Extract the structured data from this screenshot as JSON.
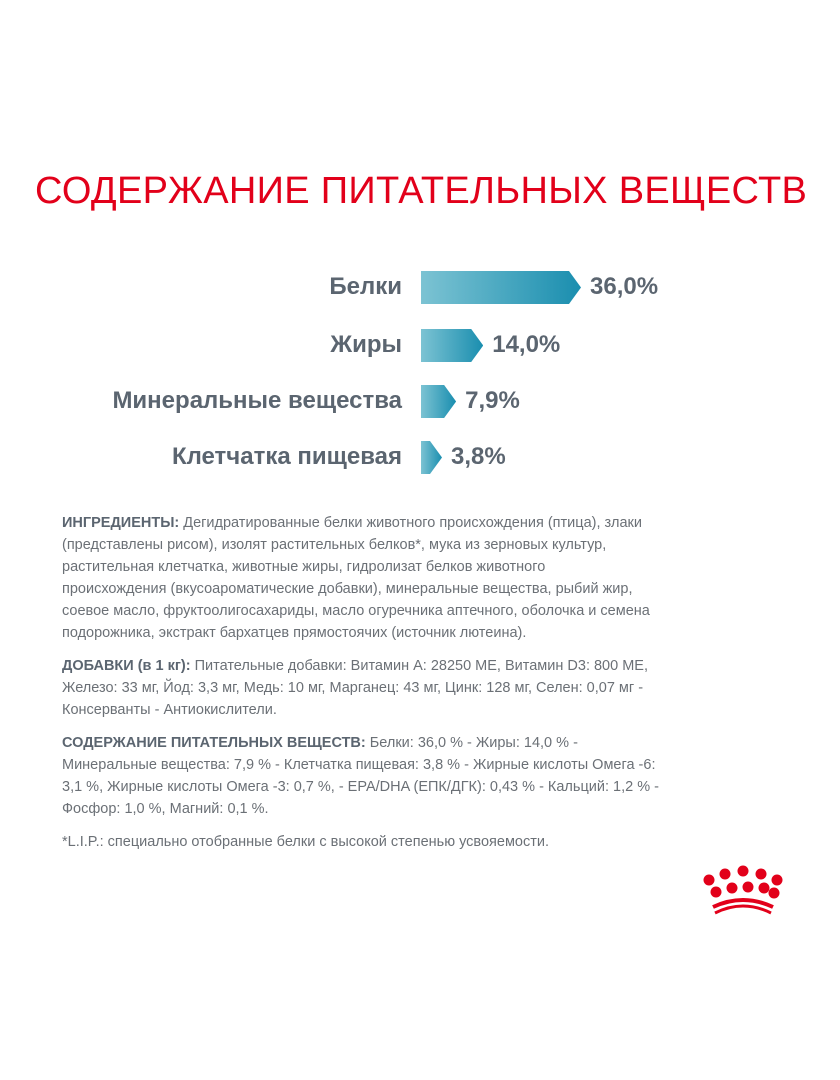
{
  "title": "СОДЕРЖАНИЕ ПИТАТЕЛЬНЫХ ВЕЩЕСТВ",
  "nutrients": [
    {
      "label": "Белки",
      "value": "36,0%",
      "percent": 36.0
    },
    {
      "label": "Жиры",
      "value": "14,0%",
      "percent": 14.0
    },
    {
      "label": "Минеральные вещества",
      "value": "7,9%",
      "percent": 7.9
    },
    {
      "label": "Клетчатка пищевая",
      "value": "3,8%",
      "percent": 3.8
    }
  ],
  "ingredients": {
    "label": "ИНГРЕДИЕНТЫ:",
    "lines": [
      " Дегидратированные белки животного происхождения (птица), злаки",
      "(представлены рисом), изолят растительных белков*, мука из зерновых культур,",
      "растительная клетчатка, животные жиры, гидролизат белков животного",
      "происхождения (вкусоароматические добавки), минеральные вещества, рыбий жир,",
      "соевое масло, фруктоолигосахариды, масло огуречника аптечного, оболочка и семена",
      "подорожника, экстракт бархатцев прямостоячих (источник лютеина)."
    ]
  },
  "additives": {
    "label": "ДОБАВКИ (в 1 кг):",
    "lines": [
      " Питательные добавки: Витамин A: 28250 МЕ, Витамин D3: 800 МЕ,",
      "Железо: 33 мг, Йод: 3,3 мг, Медь: 10 мг, Марганец: 43 мг, Цинк: 128 мг, Селен: 0,07 мг -",
      "Консерванты - Антиокислители."
    ]
  },
  "composition": {
    "label": "СОДЕРЖАНИЕ ПИТАТЕЛЬНЫХ ВЕЩЕСТВ:",
    "lines": [
      " Белки: 36,0 % - Жиры: 14,0 % -",
      "Минеральные вещества: 7,9 % - Клетчатка пищевая: 3,8 % - Жирные кислоты Омега -6:",
      "3,1 %, Жирные кислоты Омега -3: 0,7 %, - EPA/DHA (ЕПК/ДГК): 0,43 % - Кальций: 1,2 % -",
      "Фосфор: 1,0 %, Магний: 0,1 %."
    ]
  },
  "footnote": "*L.I.P.: специально отобранные белки с высокой степенью усвояемости.",
  "colors": {
    "title": "#e2001a",
    "bar_start": "#7cc3d3",
    "bar_end": "#1a8eaf",
    "text": "#6b7076"
  }
}
